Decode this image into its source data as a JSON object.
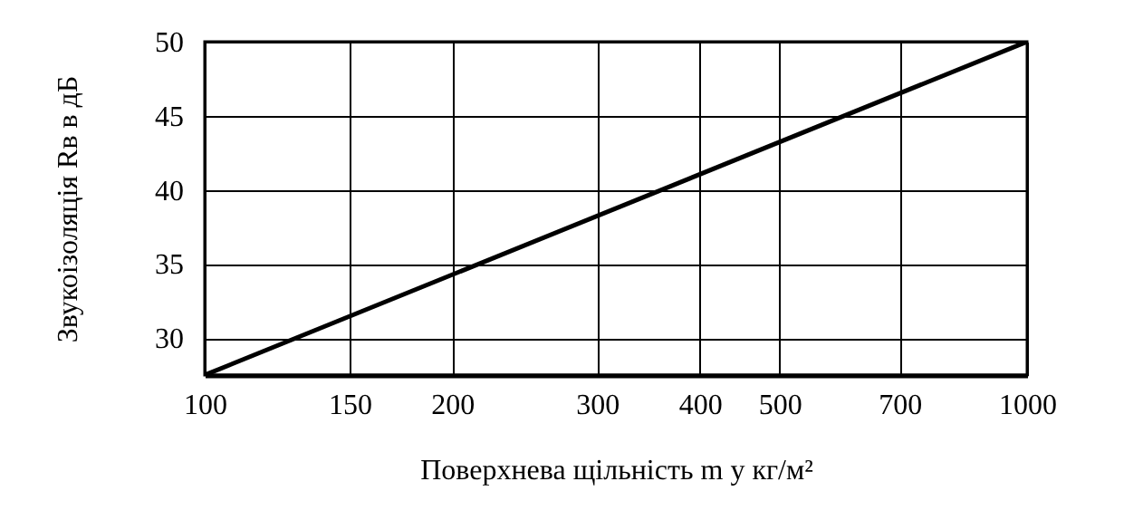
{
  "chart_data": {
    "type": "line",
    "xlabel": "Поверхнева щільність m у кг/м²",
    "ylabel": "Звукоізоляція Rв   в дБ",
    "x": [
      100,
      1000
    ],
    "series": [
      {
        "color": "#000000",
        "values": [
          27.5,
          50
        ]
      }
    ],
    "log": "x",
    "xlim": [
      100,
      1000
    ],
    "xticks": [
      100,
      150,
      200,
      300,
      400,
      500,
      700,
      1000
    ],
    "ylim": [
      27.5,
      50
    ],
    "yticks": [
      30,
      35,
      40,
      45,
      50
    ],
    "grid": true,
    "marker": "none",
    "line_style": "solid"
  }
}
